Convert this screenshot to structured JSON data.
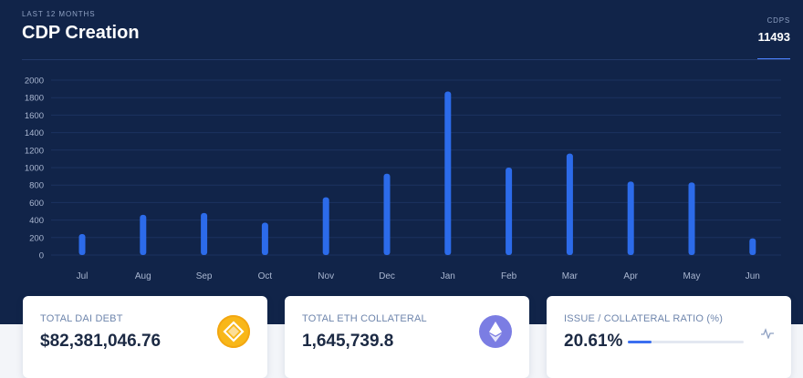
{
  "header": {
    "subtitle": "LAST 12 MONTHS",
    "title": "CDP Creation",
    "cdps_label": "CDPS",
    "cdps_value": "11493"
  },
  "colors": {
    "background": "#112449",
    "bar": "#2c6bea",
    "grid": "#1c3260",
    "tick": "#aab7d1"
  },
  "chart_data": {
    "type": "bar",
    "title": "CDP Creation",
    "categories": [
      "Jul",
      "Aug",
      "Sep",
      "Oct",
      "Nov",
      "Dec",
      "Jan",
      "Feb",
      "Mar",
      "Apr",
      "May",
      "Jun"
    ],
    "values": [
      240,
      460,
      480,
      370,
      660,
      930,
      1870,
      1000,
      1160,
      840,
      830,
      190
    ],
    "y_ticks": [
      0,
      200,
      400,
      600,
      800,
      1000,
      1200,
      1400,
      1600,
      1800,
      2000
    ],
    "ylim": [
      0,
      2000
    ],
    "xlabel": "",
    "ylabel": "",
    "grid": true
  },
  "cards": {
    "dai_debt": {
      "label": "TOTAL DAI DEBT",
      "value": "$82,381,046.76",
      "icon": "dai-icon"
    },
    "eth_collateral": {
      "label": "TOTAL ETH COLLATERAL",
      "value": "1,645,739.8",
      "icon": "eth-icon"
    },
    "ratio": {
      "label": "ISSUE / COLLATERAL RATIO (%)",
      "value": "20.61%",
      "fraction": 0.2061,
      "icon": "pulse-icon"
    }
  }
}
